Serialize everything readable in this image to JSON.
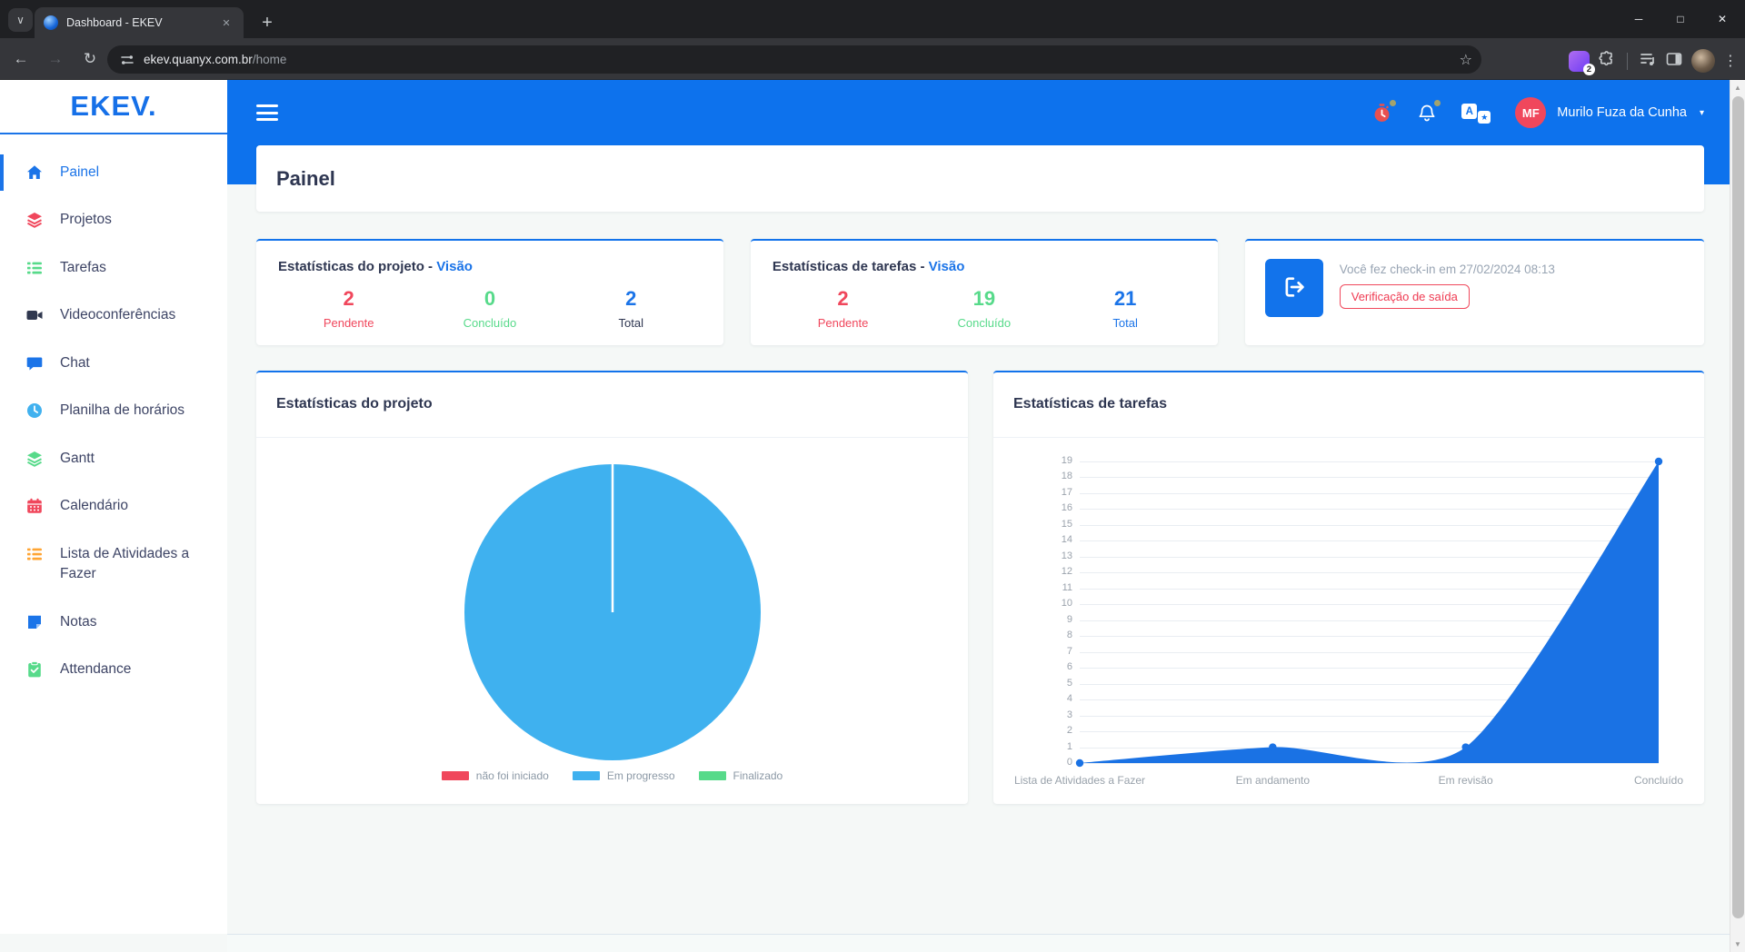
{
  "browser": {
    "tab_title": "Dashboard - EKEV",
    "url_host": "ekev.quanyx.com.br",
    "url_path": "/home",
    "extension_badge": "2"
  },
  "icons": {
    "tab_search": "∨",
    "tab_close": "✕",
    "new_tab": "+",
    "win_min": "─",
    "win_max": "□",
    "win_close": "✕",
    "back": "←",
    "forward": "→",
    "reload": "↻",
    "star": "☆",
    "kebab": "⋮",
    "caret": "▾",
    "scroll_up": "▲",
    "scroll_down": "▼",
    "translate_a": "A",
    "translate_star": "★"
  },
  "app_header": {
    "user_name": "Murilo Fuza da Cunha",
    "user_initials": "MF"
  },
  "sidebar": {
    "logo": "EKEV.",
    "items": [
      {
        "id": "painel",
        "label": "Painel",
        "icon": "home",
        "color": "#1b74e8",
        "active": true
      },
      {
        "id": "projetos",
        "label": "Projetos",
        "icon": "layers",
        "color": "#f0475c",
        "active": false
      },
      {
        "id": "tarefas",
        "label": "Tarefas",
        "icon": "tasks",
        "color": "#57da8a",
        "active": false
      },
      {
        "id": "videoconferencias",
        "label": "Videoconferências",
        "icon": "video",
        "color": "#30384f",
        "active": false
      },
      {
        "id": "chat",
        "label": "Chat",
        "icon": "chat",
        "color": "#1b74e8",
        "active": false
      },
      {
        "id": "planilha-de-horarios",
        "label": "Planilha de horários",
        "icon": "clock",
        "color": "#41b1ef",
        "active": false
      },
      {
        "id": "gantt",
        "label": "Gantt",
        "icon": "layers",
        "color": "#57da8a",
        "active": false
      },
      {
        "id": "calendario",
        "label": "Calendário",
        "icon": "calendar",
        "color": "#f0475c",
        "active": false
      },
      {
        "id": "lista-de-atividades-a-fazer",
        "label": "Lista de Atividades a Fazer",
        "icon": "tasks",
        "color": "#ffa534",
        "active": false
      },
      {
        "id": "notas",
        "label": "Notas",
        "icon": "note",
        "color": "#1b74e8",
        "active": false
      },
      {
        "id": "attendance",
        "label": "Attendance",
        "icon": "clipboard",
        "color": "#57da8a",
        "active": false
      }
    ]
  },
  "page": {
    "title": "Painel"
  },
  "stat_cards": [
    {
      "title": "Estatísticas do projeto - ",
      "link": "Visão",
      "stats": [
        {
          "value": "2",
          "label": "Pendente",
          "color": "#f0475c",
          "label_color": "#f0475c"
        },
        {
          "value": "0",
          "label": "Concluído",
          "color": "#57da8a",
          "label_color": "#57da8a"
        },
        {
          "value": "2",
          "label": "Total",
          "color": "#1b74e8",
          "label_color": "#2e3651"
        }
      ]
    },
    {
      "title": "Estatísticas de tarefas - ",
      "link": "Visão",
      "stats": [
        {
          "value": "2",
          "label": "Pendente",
          "color": "#f0475c",
          "label_color": "#f0475c"
        },
        {
          "value": "19",
          "label": "Concluído",
          "color": "#57da8a",
          "label_color": "#57da8a"
        },
        {
          "value": "21",
          "label": "Total",
          "color": "#1b74e8",
          "label_color": "#1b74e8"
        }
      ]
    }
  ],
  "checkin": {
    "message": "Você fez check-in em 27/02/2024 08:13",
    "button_label": "Verificação de saída"
  },
  "chart_data": [
    {
      "type": "pie",
      "title": "Estatísticas do projeto",
      "labels": [
        "não foi iniciado",
        "Em progresso",
        "Finalizado"
      ],
      "values": [
        0,
        2,
        0
      ],
      "colors": [
        "#f0475c",
        "#3fb1ef",
        "#57da8a"
      ],
      "legend_position": "bottom"
    },
    {
      "type": "area",
      "title": "Estatísticas de tarefas",
      "categories": [
        "Lista de Atividades a Fazer",
        "Em andamento",
        "Em revisão",
        "Concluído"
      ],
      "values": [
        0,
        1,
        1,
        19
      ],
      "ylim": [
        0,
        19
      ],
      "ytick_step": 1,
      "grid": true,
      "color": "#1a72e4",
      "legend_position": "none"
    }
  ]
}
